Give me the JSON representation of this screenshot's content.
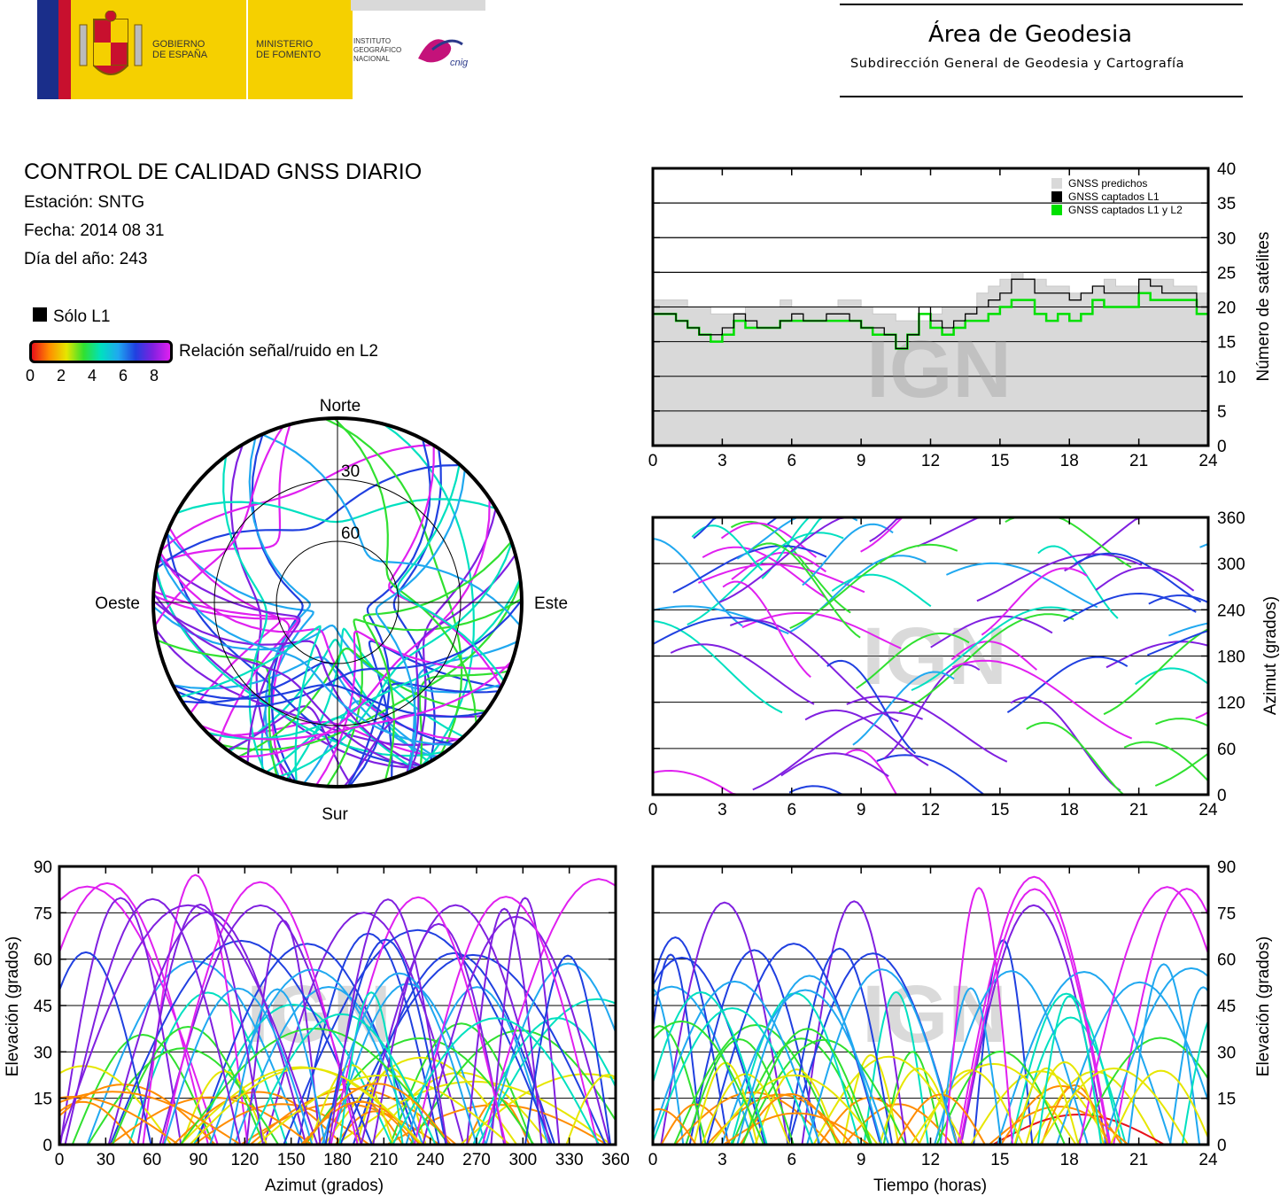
{
  "header": {
    "gob_line1": "GOBIERNO",
    "gob_line2": "DE ESPAÑA",
    "min_line1": "MINISTERIO",
    "min_line2": "DE FOMENTO",
    "ign_line1": "INSTITUTO",
    "ign_line2": "GEOGRÁFICO",
    "ign_line3": "NACIONAL",
    "cnig_logo_text": "cnig",
    "area_title": "Área de Geodesia",
    "area_subtitle": "Subdirección General de Geodesia y Cartografía"
  },
  "info": {
    "title": "CONTROL DE CALIDAD GNSS DIARIO",
    "station": "Estación: SNTG",
    "date": "Fecha: 2014 08 31",
    "doy": "Día del año: 243"
  },
  "legend": {
    "l1_only": "Sólo L1",
    "snr_label": "Relación señal/ruido en L2",
    "snr_ticks": [
      "0",
      "2",
      "4",
      "6",
      "8"
    ],
    "colors": [
      "#e8101a",
      "#ff8c00",
      "#e6e600",
      "#30e030",
      "#00e0c0",
      "#20a8f0",
      "#2040e0",
      "#8020e0",
      "#e020f0"
    ]
  },
  "watermark": "IGN",
  "chart_data": [
    {
      "id": "satellite-count",
      "type": "step-area",
      "xlim": [
        0,
        24
      ],
      "ylim": [
        0,
        40
      ],
      "xticks": [
        "0",
        "3",
        "6",
        "9",
        "12",
        "15",
        "18",
        "21",
        "24"
      ],
      "yticks": [
        "0",
        "5",
        "10",
        "15",
        "20",
        "25",
        "30",
        "35",
        "40"
      ],
      "ylabel": "Número de satélites",
      "legend_position": "top-right",
      "series": [
        {
          "name": "GNSS predichos",
          "color": "#d9d9d9",
          "x": [
            0,
            0.5,
            1,
            1.5,
            2,
            2.5,
            3,
            3.5,
            4,
            4.5,
            5,
            5.5,
            6,
            6.5,
            7,
            7.5,
            8,
            8.5,
            9,
            9.5,
            10,
            10.5,
            11,
            11.5,
            12,
            12.5,
            13,
            13.5,
            14,
            14.5,
            15,
            15.5,
            16,
            16.5,
            17,
            17.5,
            18,
            18.5,
            19,
            19.5,
            20,
            20.5,
            21,
            21.5,
            22,
            22.5,
            23,
            23.5,
            24
          ],
          "values": [
            21,
            21,
            21,
            20,
            20,
            19,
            19,
            19,
            20,
            20,
            20,
            21,
            20,
            20,
            20,
            20,
            21,
            21,
            20,
            19,
            19,
            18,
            18,
            18,
            19,
            20,
            20,
            20,
            22,
            23,
            24,
            25,
            24,
            24,
            23,
            23,
            22,
            22,
            23,
            24,
            23,
            23,
            24,
            24,
            24,
            23,
            23,
            22,
            21
          ]
        },
        {
          "name": "GNSS captados L1",
          "color": "#000000",
          "x": [
            0,
            0.5,
            1,
            1.5,
            2,
            2.5,
            3,
            3.5,
            4,
            4.5,
            5,
            5.5,
            6,
            6.5,
            7,
            7.5,
            8,
            8.5,
            9,
            9.5,
            10,
            10.5,
            11,
            11.5,
            12,
            12.5,
            13,
            13.5,
            14,
            14.5,
            15,
            15.5,
            16,
            16.5,
            17,
            17.5,
            18,
            18.5,
            19,
            19.5,
            20,
            20.5,
            21,
            21.5,
            22,
            22.5,
            23,
            23.5,
            24
          ],
          "values": [
            19,
            19,
            18,
            17,
            16,
            16,
            17,
            19,
            18,
            17,
            17,
            18,
            19,
            18,
            18,
            19,
            19,
            18,
            17,
            17,
            16,
            14,
            16,
            20,
            18,
            17,
            18,
            19,
            20,
            21,
            22,
            24,
            24,
            22,
            22,
            22,
            21,
            22,
            23,
            22,
            22,
            22,
            24,
            23,
            22,
            22,
            22,
            20,
            18
          ]
        },
        {
          "name": "GNSS captados L1 y L2",
          "color": "#00e000",
          "x": [
            0,
            0.5,
            1,
            1.5,
            2,
            2.5,
            3,
            3.5,
            4,
            4.5,
            5,
            5.5,
            6,
            6.5,
            7,
            7.5,
            8,
            8.5,
            9,
            9.5,
            10,
            10.5,
            11,
            11.5,
            12,
            12.5,
            13,
            13.5,
            14,
            14.5,
            15,
            15.5,
            16,
            16.5,
            17,
            17.5,
            18,
            18.5,
            19,
            19.5,
            20,
            20.5,
            21,
            21.5,
            22,
            22.5,
            23,
            23.5,
            24
          ],
          "values": [
            19,
            19,
            18,
            17,
            16,
            15,
            16,
            18,
            17,
            17,
            17,
            18,
            18,
            18,
            18,
            18,
            18,
            18,
            17,
            16,
            16,
            14,
            16,
            19,
            17,
            16,
            17,
            18,
            18,
            19,
            20,
            21,
            21,
            19,
            18,
            19,
            18,
            19,
            21,
            20,
            20,
            20,
            22,
            21,
            21,
            21,
            21,
            19,
            18
          ]
        }
      ]
    },
    {
      "id": "azimuth-time",
      "type": "scatter",
      "xlim": [
        0,
        24
      ],
      "ylim": [
        0,
        360
      ],
      "xticks": [
        "0",
        "3",
        "6",
        "9",
        "12",
        "15",
        "18",
        "21",
        "24"
      ],
      "yticks": [
        "0",
        "60",
        "120",
        "180",
        "240",
        "300",
        "360"
      ],
      "ylabel": "Azimut (grados)"
    },
    {
      "id": "elevation-azimuth",
      "type": "scatter",
      "xlim": [
        0,
        360
      ],
      "ylim": [
        0,
        90
      ],
      "xticks": [
        "0",
        "30",
        "60",
        "90",
        "120",
        "150",
        "180",
        "210",
        "240",
        "270",
        "300",
        "330",
        "360"
      ],
      "yticks": [
        "0",
        "15",
        "30",
        "45",
        "60",
        "75",
        "90"
      ],
      "xlabel": "Azimut (grados)",
      "ylabel": "Elevación (grados)"
    },
    {
      "id": "elevation-time",
      "type": "scatter",
      "xlim": [
        0,
        24
      ],
      "ylim": [
        0,
        90
      ],
      "xticks": [
        "0",
        "3",
        "6",
        "9",
        "12",
        "15",
        "18",
        "21",
        "24"
      ],
      "yticks": [
        "0",
        "15",
        "30",
        "45",
        "60",
        "75",
        "90"
      ],
      "xlabel": "Tiempo (horas)",
      "ylabel": "Elevación (grados)"
    },
    {
      "id": "skyplot",
      "type": "polar-scatter",
      "directions": {
        "north": "Norte",
        "south": "Sur",
        "east": "Este",
        "west": "Oeste"
      },
      "rings": [
        "30",
        "60"
      ]
    }
  ]
}
